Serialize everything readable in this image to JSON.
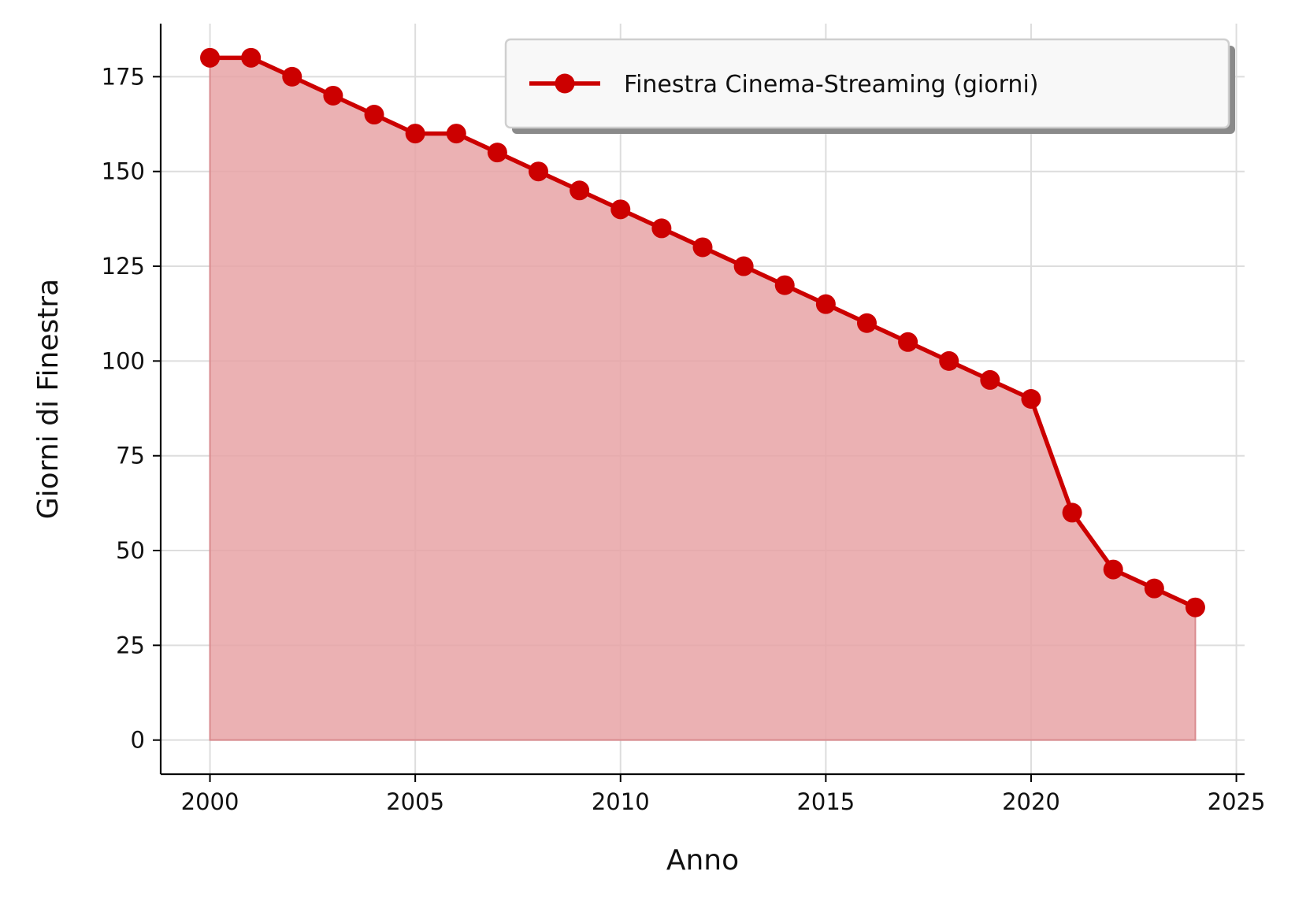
{
  "chart_data": {
    "type": "area",
    "xlabel": "Anno",
    "ylabel": "Giorni di Finestra",
    "xlim": [
      1998.8,
      2025.2
    ],
    "ylim": [
      -9,
      189
    ],
    "xticks": [
      2000,
      2005,
      2010,
      2015,
      2020,
      2025
    ],
    "yticks": [
      0,
      25,
      50,
      75,
      100,
      125,
      150,
      175
    ],
    "grid": true,
    "legend_position": "top-right",
    "series": [
      {
        "name": "Finestra Cinema-Streaming (giorni)",
        "color": "#cc0000",
        "fill_color": "#e8a3a6",
        "x": [
          2000,
          2001,
          2002,
          2003,
          2004,
          2005,
          2006,
          2007,
          2008,
          2009,
          2010,
          2011,
          2012,
          2013,
          2014,
          2015,
          2016,
          2017,
          2018,
          2019,
          2020,
          2021,
          2022,
          2023,
          2024
        ],
        "values": [
          180,
          180,
          175,
          170,
          165,
          160,
          160,
          155,
          150,
          145,
          140,
          135,
          130,
          125,
          120,
          115,
          110,
          105,
          100,
          95,
          90,
          60,
          45,
          40,
          35
        ]
      }
    ]
  }
}
